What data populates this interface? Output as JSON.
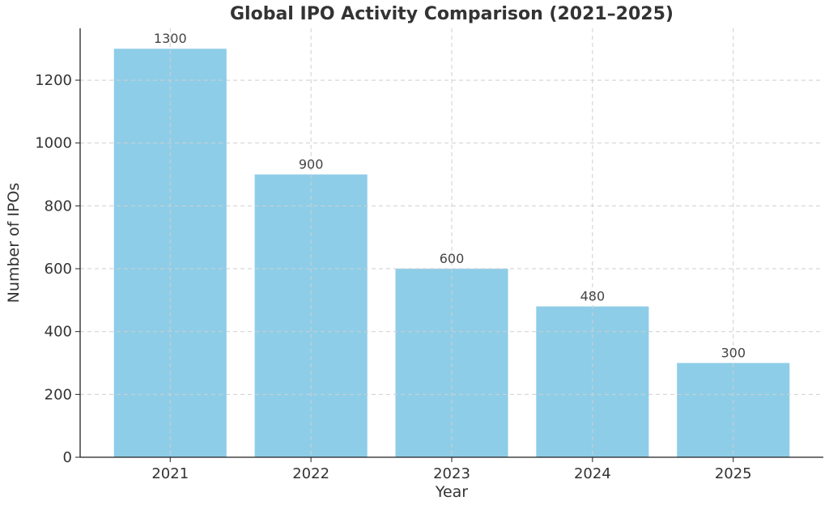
{
  "chart_data": {
    "type": "bar",
    "title": "Global IPO Activity Comparison (2021–2025)",
    "xlabel": "Year",
    "ylabel": "Number of IPOs",
    "categories": [
      "2021",
      "2022",
      "2023",
      "2024",
      "2025"
    ],
    "values": [
      1300,
      900,
      600,
      480,
      300
    ],
    "data_labels": [
      "1300",
      "900",
      "600",
      "480",
      "300"
    ],
    "yticks": [
      0,
      200,
      400,
      600,
      800,
      1000,
      1200
    ],
    "ytick_labels": [
      "0",
      "200",
      "400",
      "600",
      "800",
      "1000",
      "1200"
    ],
    "ylim": [
      0,
      1365
    ],
    "grid": true,
    "bar_color": "#8ecde8"
  }
}
